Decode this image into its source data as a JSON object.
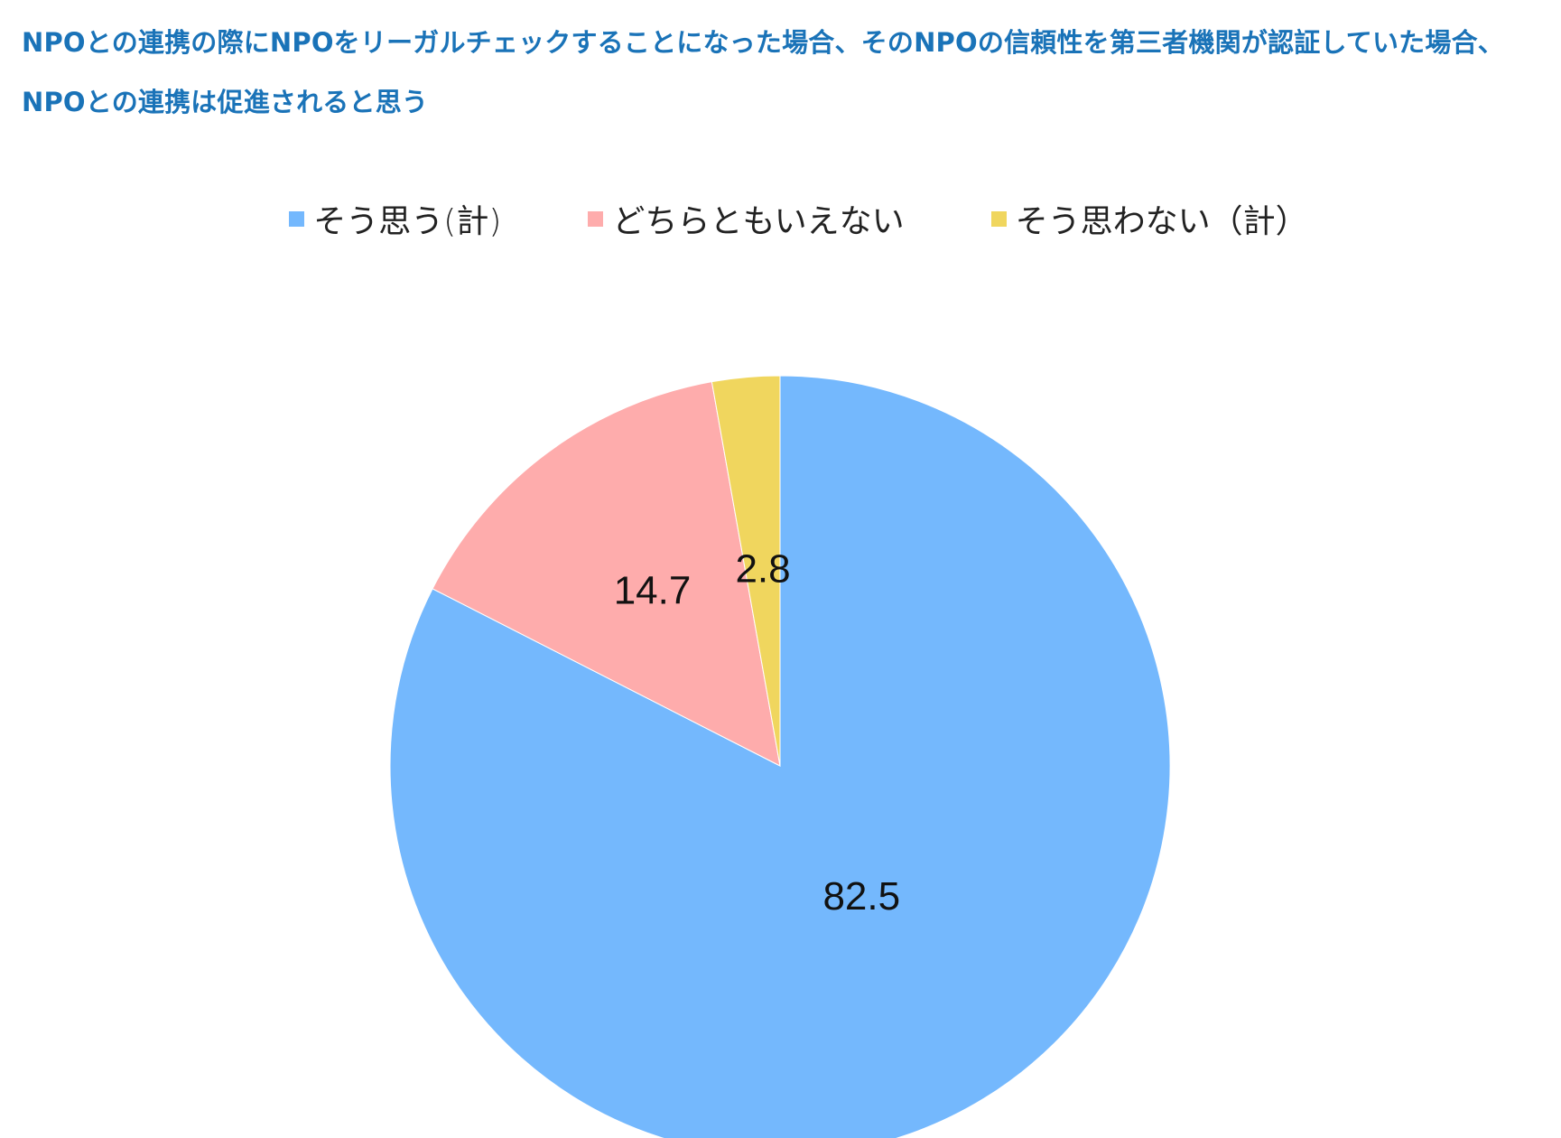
{
  "chart_data": {
    "type": "pie",
    "title": "NPOとの連携の際にNPOをリーガルチェックすることになった場合、そのNPOの信頼性を第三者機関が認証していた場合、NPOとの連携は促進されると思う",
    "slices": [
      {
        "label": "そう思う(計)",
        "value": 82.5,
        "color": "#74b8fd"
      },
      {
        "label": "どちらともいえない",
        "value": 14.7,
        "color": "#feacac"
      },
      {
        "label": "そう思わない（計）",
        "value": 2.8,
        "color": "#f0d65e"
      }
    ],
    "legend_position": "top",
    "direction": "clockwise",
    "start": "12 o'clock"
  }
}
